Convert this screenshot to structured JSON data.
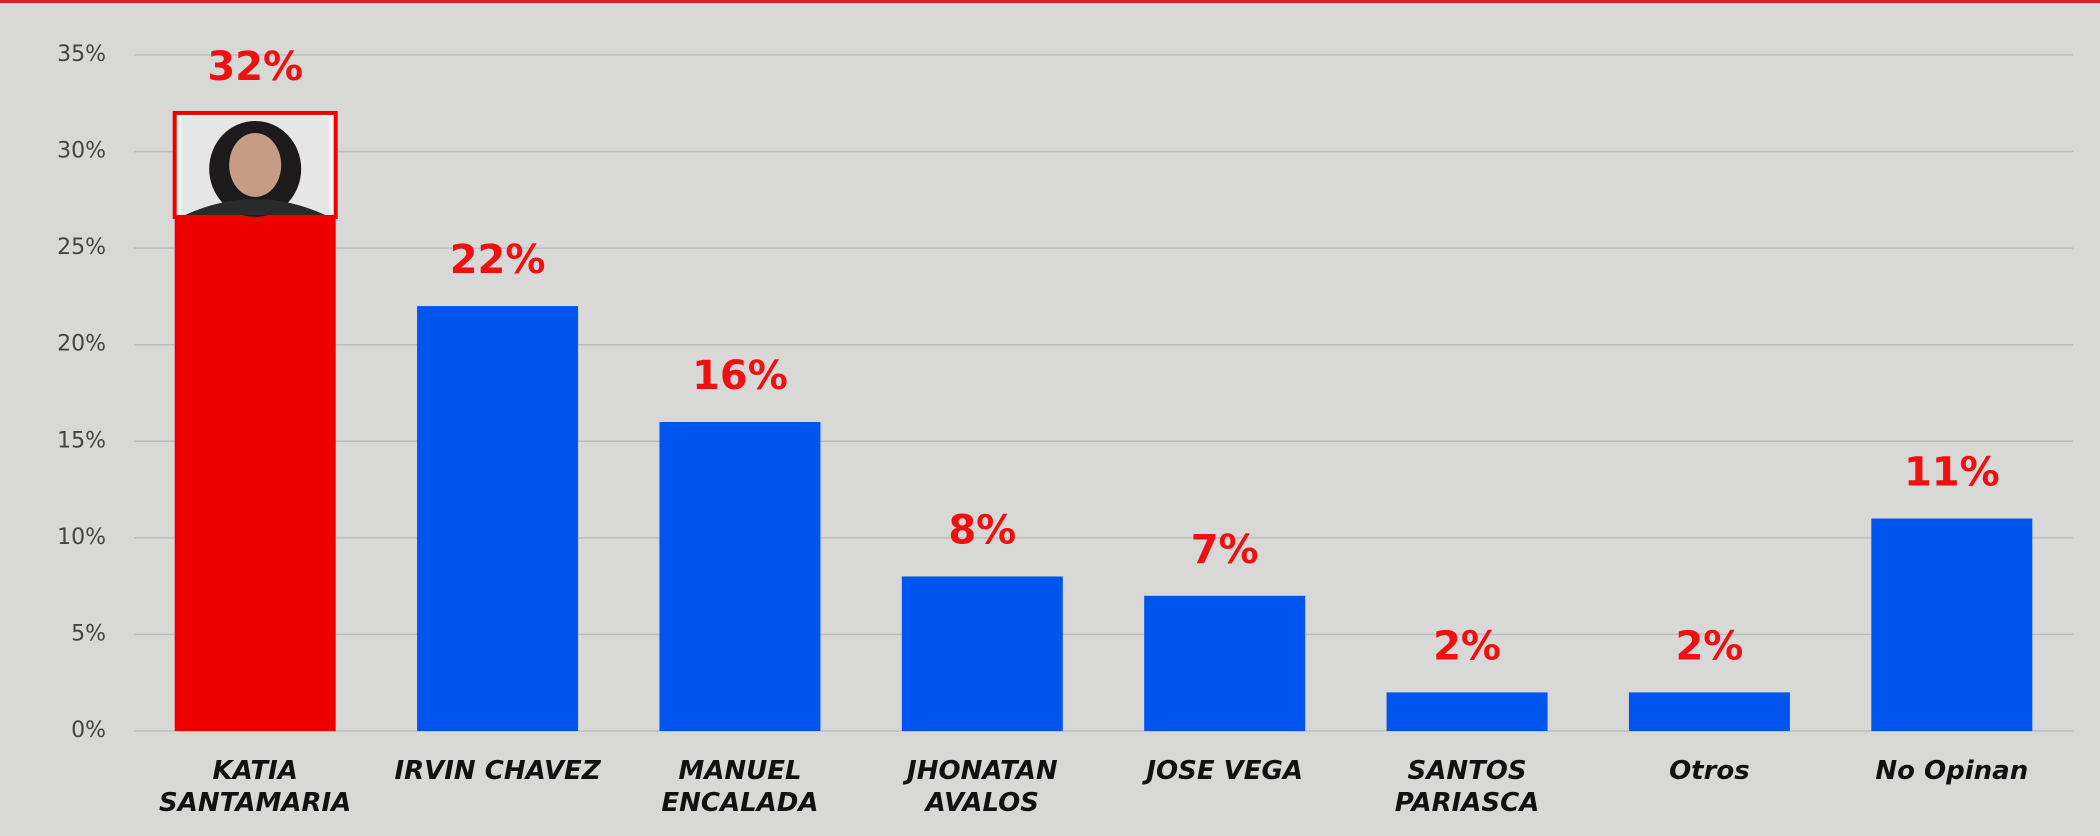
{
  "chart_data": {
    "type": "bar",
    "categories": [
      "KATIA SANTAMARIA",
      "IRVIN CHAVEZ",
      "MANUEL ENCALADA",
      "JHONATAN AVALOS",
      "JOSE VEGA",
      "SANTOS PARIASCA",
      "Otros",
      "No Opinan"
    ],
    "values": [
      32,
      22,
      16,
      8,
      7,
      2,
      2,
      11
    ],
    "value_labels": [
      "32%",
      "22%",
      "16%",
      "8%",
      "7%",
      "2%",
      "2%",
      "11%"
    ],
    "colors": [
      "#ee0000",
      "#0055ee",
      "#0055ee",
      "#0055ee",
      "#0055ee",
      "#0055ee",
      "#0055ee",
      "#0055ee"
    ],
    "ylim": [
      0,
      35
    ],
    "yticks": [
      {
        "value": 0,
        "label": "0%"
      },
      {
        "value": 5,
        "label": "5%"
      },
      {
        "value": 10,
        "label": "10%"
      },
      {
        "value": 15,
        "label": "15%"
      },
      {
        "value": 20,
        "label": "20%"
      },
      {
        "value": 25,
        "label": "25%"
      },
      {
        "value": 30,
        "label": "30%"
      },
      {
        "value": 35,
        "label": "35%"
      }
    ],
    "grid": true
  }
}
